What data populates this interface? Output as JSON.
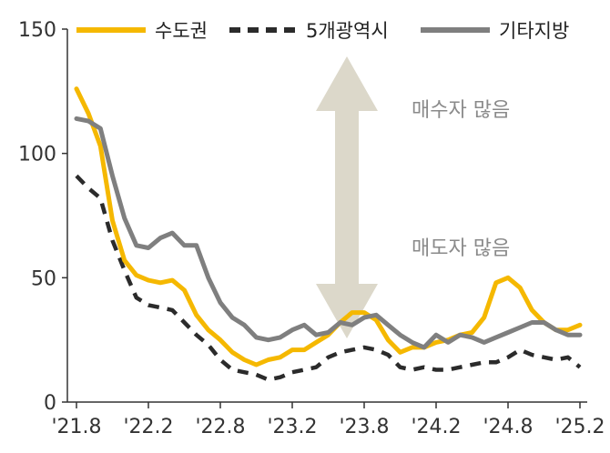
{
  "chart_data": {
    "type": "line",
    "x": [
      "'21.8",
      "'21.9",
      "'21.10",
      "'21.11",
      "'21.12",
      "'22.1",
      "'22.2",
      "'22.3",
      "'22.4",
      "'22.5",
      "'22.6",
      "'22.7",
      "'22.8",
      "'22.9",
      "'22.10",
      "'22.11",
      "'22.12",
      "'23.1",
      "'23.2",
      "'23.3",
      "'23.4",
      "'23.5",
      "'23.6",
      "'23.7",
      "'23.8",
      "'23.9",
      "'23.10",
      "'23.11",
      "'23.12",
      "'24.1",
      "'24.2",
      "'24.3",
      "'24.4",
      "'24.5",
      "'24.6",
      "'24.7",
      "'24.8",
      "'24.9",
      "'24.10",
      "'24.11",
      "'24.12",
      "'25.1",
      "'25.2"
    ],
    "x_tick_labels": [
      "'21.8",
      "'22.2",
      "'22.8",
      "'23.2",
      "'23.8",
      "'24.2",
      "'24.8",
      "'25.2"
    ],
    "x_tick_index": [
      0,
      6,
      12,
      18,
      24,
      30,
      36,
      42
    ],
    "ylim": [
      0,
      150
    ],
    "yticks": [
      0,
      50,
      100,
      150
    ],
    "series": [
      {
        "name": "수도권",
        "color": "#f5b800",
        "dash": "solid",
        "values": [
          126,
          116,
          103,
          73,
          57,
          51,
          49,
          48,
          49,
          45,
          35,
          29,
          25,
          20,
          17,
          15,
          17,
          18,
          21,
          21,
          24,
          27,
          32,
          36,
          36,
          33,
          25,
          20,
          22,
          22,
          24,
          25,
          27,
          28,
          34,
          48,
          50,
          46,
          37,
          32,
          29,
          29,
          31
        ]
      },
      {
        "name": "5개광역시",
        "color": "#2b2b2b",
        "dash": "dashed",
        "values": [
          91,
          86,
          82,
          65,
          53,
          42,
          39,
          38,
          37,
          32,
          27,
          23,
          17,
          13,
          12,
          11,
          9,
          10,
          12,
          13,
          14,
          18,
          20,
          21,
          22,
          21,
          19,
          14,
          13,
          14,
          13,
          13,
          14,
          15,
          16,
          16,
          18,
          21,
          19,
          18,
          17,
          18,
          14
        ]
      },
      {
        "name": "기타지방",
        "color": "#7f7f7f",
        "dash": "solid",
        "values": [
          114,
          113,
          110,
          91,
          74,
          63,
          62,
          66,
          68,
          63,
          63,
          50,
          40,
          34,
          31,
          26,
          25,
          26,
          29,
          31,
          27,
          28,
          32,
          31,
          34,
          35,
          31,
          27,
          24,
          22,
          27,
          24,
          27,
          26,
          24,
          26,
          28,
          30,
          32,
          32,
          29,
          27,
          27
        ]
      }
    ],
    "annotations": [
      "매수자 많음",
      "매도자 많음"
    ],
    "legend_position": "top",
    "grid": false
  }
}
